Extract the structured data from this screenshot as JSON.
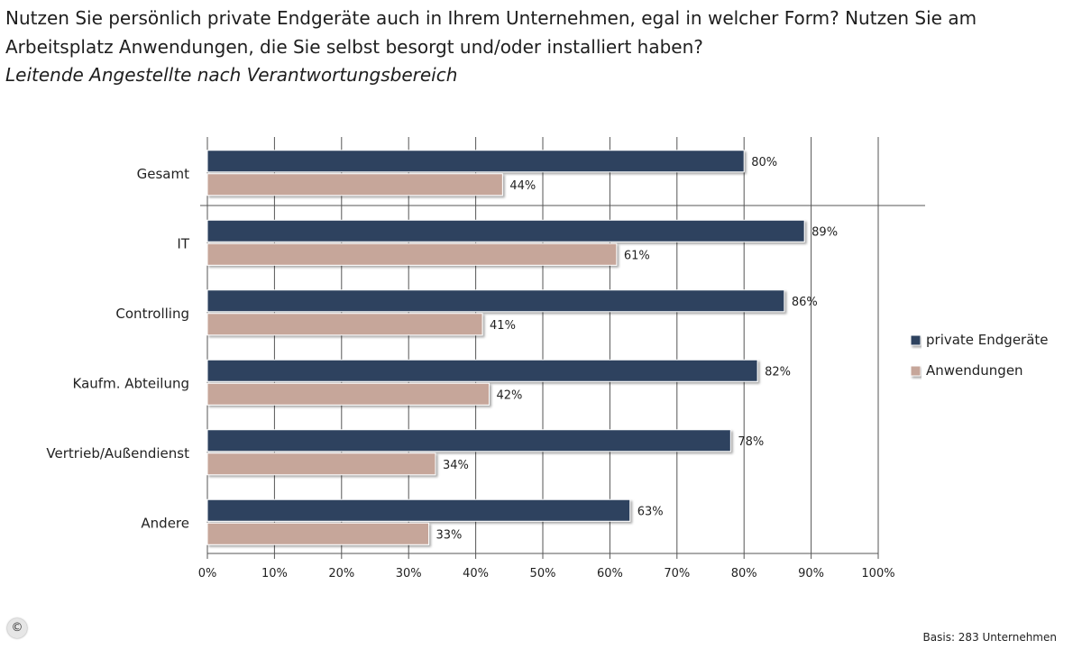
{
  "header": {
    "title": "Nutzen Sie persönlich private Endgeräte auch in Ihrem Unternehmen, egal in welcher Form? Nutzen Sie am Arbeitsplatz Anwendungen, die Sie selbst besorgt und/oder installiert haben?",
    "subtitle": "Leitende Angestellte nach Verantwortungsbereich"
  },
  "footer": {
    "copyright_symbol": "©",
    "basis": "Basis: 283 Unternehmen"
  },
  "colors": {
    "private": "#2f435e",
    "anwendungen": "#c6a69a",
    "grid": "#555555"
  },
  "chart_data": {
    "type": "bar",
    "orientation": "horizontal",
    "categories": [
      "Gesamt",
      "IT",
      "Controlling",
      "Kaufm. Abteilung",
      "Vertrieb/Außendienst",
      "Andere"
    ],
    "series": [
      {
        "name": "private Endgeräte",
        "values": [
          80,
          89,
          86,
          82,
          78,
          63
        ],
        "labels": [
          "80%",
          "89%",
          "86%",
          "82%",
          "78%",
          "63%"
        ]
      },
      {
        "name": "Anwendungen",
        "values": [
          44,
          61,
          41,
          42,
          34,
          33
        ],
        "labels": [
          "44%",
          "61%",
          "41%",
          "42%",
          "34%",
          "33%"
        ]
      }
    ],
    "xticks": [
      "0%",
      "10%",
      "20%",
      "30%",
      "40%",
      "50%",
      "60%",
      "70%",
      "80%",
      "90%",
      "100%"
    ],
    "xlim": [
      0,
      100
    ],
    "grid": true,
    "legend_position": "right"
  }
}
